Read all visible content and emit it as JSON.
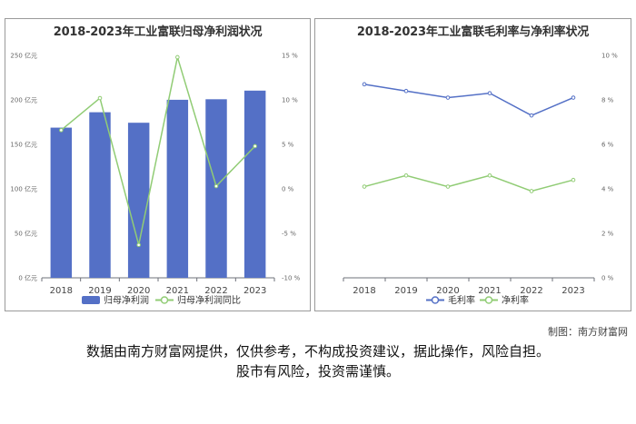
{
  "footer": {
    "credit": "制图：南方财富网",
    "disclaimer_line1": "数据由南方财富网提供，仅供参考，不构成投资建议，据此操作，风险自担。",
    "disclaimer_line2": "股市有风险，投资需谨慎。"
  },
  "chart_data": [
    {
      "type": "bar",
      "title": "2018-2023年工业富联归母净利润状况",
      "categories": [
        "2018",
        "2019",
        "2020",
        "2021",
        "2022",
        "2023"
      ],
      "series": [
        {
          "name": "归母净利润",
          "type": "bar",
          "axis": "left",
          "color": "#5470c6",
          "values": [
            168.8,
            186.1,
            174.3,
            200.1,
            200.7,
            210.4
          ]
        },
        {
          "name": "归母净利润同比",
          "type": "line",
          "axis": "right",
          "color": "#91cc75",
          "values": [
            6.6,
            10.2,
            -6.3,
            14.8,
            0.3,
            4.8
          ]
        }
      ],
      "y_left": {
        "min": 0,
        "max": 250,
        "ticks": [
          "0 亿元",
          "50 亿元",
          "100 亿元",
          "150 亿元",
          "200 亿元",
          "250 亿元"
        ]
      },
      "y_right": {
        "min": -10,
        "max": 15,
        "ticks": [
          "-10 %",
          "-5 %",
          "0 %",
          "5 %",
          "10 %",
          "15 %"
        ]
      },
      "legend": "bottom",
      "grid": false
    },
    {
      "type": "line",
      "title": "2018-2023年工业富联毛利率与净利率状况",
      "categories": [
        "2018",
        "2019",
        "2020",
        "2021",
        "2022",
        "2023"
      ],
      "series": [
        {
          "name": "毛利率",
          "color": "#5470c6",
          "values": [
            8.7,
            8.4,
            8.1,
            8.3,
            7.3,
            8.1
          ]
        },
        {
          "name": "净利率",
          "color": "#91cc75",
          "values": [
            4.1,
            4.6,
            4.1,
            4.6,
            3.9,
            4.4
          ]
        }
      ],
      "y_right": {
        "min": 0,
        "max": 10,
        "ticks": [
          "0 %",
          "2 %",
          "4 %",
          "6 %",
          "8 %",
          "10 %"
        ]
      },
      "legend": "bottom",
      "grid": false
    }
  ]
}
